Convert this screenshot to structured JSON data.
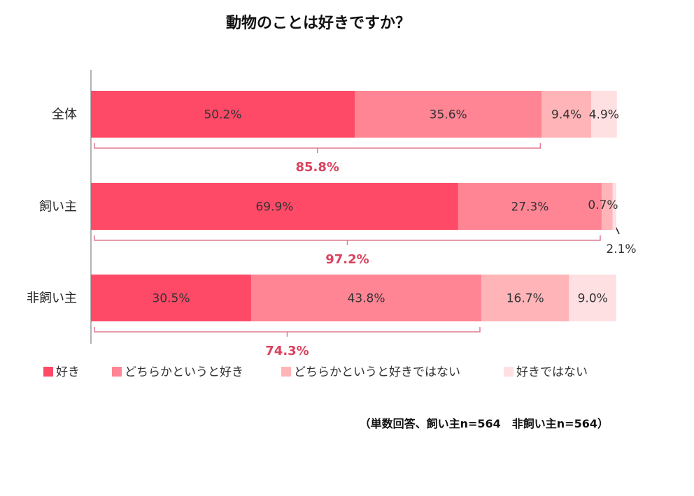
{
  "chart_data": {
    "type": "bar",
    "orientation": "horizontal-stacked-100",
    "title": "動物のことは好きですか？",
    "categories": [
      "全体",
      "飼い主",
      "非飼い主"
    ],
    "series": [
      {
        "name": "好き",
        "values": [
          50.2,
          69.9,
          30.5
        ],
        "color": "#ff4a67"
      },
      {
        "name": "どちらかというと好き",
        "values": [
          35.6,
          27.3,
          43.8
        ],
        "color": "#ff8595"
      },
      {
        "name": "どちらかというと好きではない",
        "values": [
          9.4,
          2.1,
          16.7
        ],
        "color": "#ffb5b8"
      },
      {
        "name": "好きではない",
        "values": [
          4.9,
          0.7,
          9.0
        ],
        "color": "#ffe0e2"
      }
    ],
    "value_labels": [
      [
        "50.2%",
        "35.6%",
        "9.4%",
        "4.9%"
      ],
      [
        "69.9%",
        "27.3%",
        "2.1%",
        "0.7%"
      ],
      [
        "30.5%",
        "43.8%",
        "16.7%",
        "9.0%"
      ]
    ],
    "sum_labels": [
      "85.8%",
      "97.2%",
      "74.3%"
    ],
    "sum_values": [
      85.8,
      97.2,
      74.3
    ],
    "xlim": [
      0,
      100
    ],
    "legend_position": "bottom",
    "note": "（単数回答、飼い主n=564　非飼い主n=564）",
    "accent_color": "#d9435e",
    "bracket_color": "#e07a90"
  }
}
